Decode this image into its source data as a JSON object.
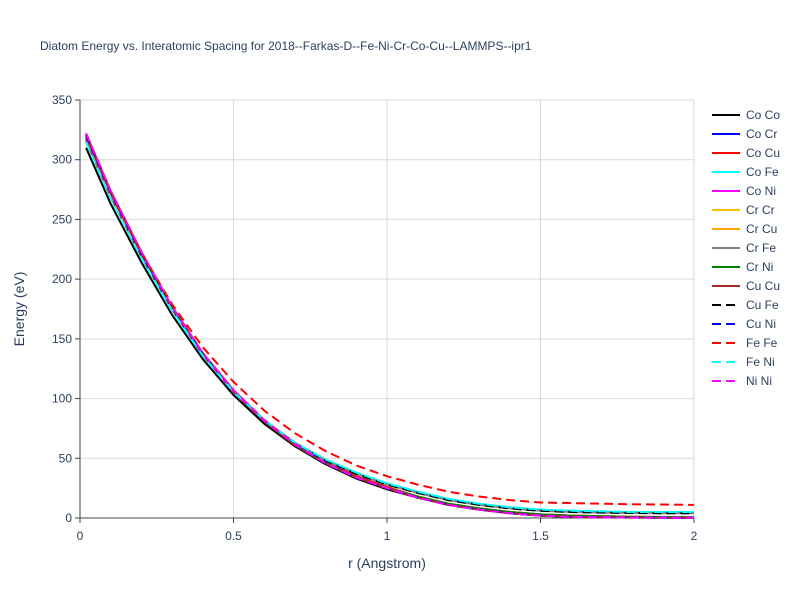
{
  "chart_data": {
    "type": "line",
    "title": "Diatom Energy vs. Interatomic Spacing for 2018--Farkas-D--Fe-Ni-Cr-Co-Cu--LAMMPS--ipr1",
    "xlabel": "r (Angstrom)",
    "ylabel": "Energy (eV)",
    "xlim": [
      0,
      2
    ],
    "ylim": [
      0,
      350
    ],
    "x_ticks": [
      "0",
      "0.5",
      "1",
      "1.5",
      "2"
    ],
    "y_ticks": [
      "0",
      "50",
      "100",
      "150",
      "200",
      "250",
      "300",
      "350"
    ],
    "x_tick_values": [
      0,
      0.5,
      1,
      1.5,
      2
    ],
    "y_tick_values": [
      0,
      50,
      100,
      150,
      200,
      250,
      300,
      350
    ],
    "grid": true,
    "legend_position": "right",
    "x": [
      0.02,
      0.1,
      0.2,
      0.3,
      0.4,
      0.5,
      0.6,
      0.7,
      0.8,
      0.9,
      1.0,
      1.1,
      1.2,
      1.3,
      1.4,
      1.5,
      1.6,
      1.7,
      1.8,
      1.9,
      2.0
    ],
    "series": [
      {
        "name": "Co Co",
        "color": "#000000",
        "dash": "solid",
        "values": [
          310,
          263,
          214,
          170,
          133,
          103,
          79,
          60,
          45,
          33,
          24,
          17,
          11,
          7,
          4,
          2,
          1,
          0.5,
          0.3,
          0.2,
          0.1
        ]
      },
      {
        "name": "Co Cr",
        "color": "#0000ff",
        "dash": "solid",
        "values": [
          318,
          270,
          220,
          175,
          137,
          106,
          81,
          61,
          46,
          34,
          25,
          18,
          12,
          8,
          5,
          3,
          2,
          1.5,
          1,
          0.8,
          0.6
        ]
      },
      {
        "name": "Co Cu",
        "color": "#ff0000",
        "dash": "solid",
        "values": [
          321,
          273,
          222,
          177,
          138,
          107,
          82,
          62,
          47,
          35,
          26,
          18,
          12,
          8,
          5,
          3,
          2,
          1.5,
          1,
          0.8,
          0.6
        ]
      },
      {
        "name": "Co Fe",
        "color": "#00ffff",
        "dash": "solid",
        "values": [
          315,
          268,
          218,
          174,
          136,
          106,
          82,
          63,
          49,
          38,
          29,
          22,
          16,
          12,
          9,
          7,
          6,
          5.5,
          5,
          5,
          5
        ]
      },
      {
        "name": "Co Ni",
        "color": "#ff00ff",
        "dash": "solid",
        "values": [
          322,
          274,
          223,
          177,
          138,
          107,
          82,
          62,
          46,
          34,
          25,
          17,
          11,
          7,
          4,
          2,
          1,
          0.6,
          0.4,
          0.3,
          0.2
        ]
      },
      {
        "name": "Cr Cr",
        "color": "#ffbf00",
        "dash": "solid",
        "values": [
          320,
          272,
          221,
          176,
          137,
          106,
          81,
          61,
          46,
          34,
          25,
          18,
          12,
          8,
          5,
          3,
          2,
          1.5,
          1,
          0.8,
          0.6
        ]
      },
      {
        "name": "Cr Cu",
        "color": "#ffa500",
        "dash": "solid",
        "values": [
          320,
          272,
          221,
          176,
          137,
          106,
          81,
          61,
          46,
          34,
          25,
          18,
          12,
          8,
          5,
          3,
          2,
          1.5,
          1,
          0.8,
          0.6
        ]
      },
      {
        "name": "Cr Fe",
        "color": "#808080",
        "dash": "solid",
        "values": [
          316,
          269,
          219,
          175,
          137,
          106,
          82,
          63,
          48,
          37,
          28,
          21,
          15,
          11,
          8,
          6,
          5,
          4.5,
          4.2,
          4,
          4
        ]
      },
      {
        "name": "Cr Ni",
        "color": "#008000",
        "dash": "solid",
        "values": [
          319,
          271,
          220,
          175,
          137,
          106,
          81,
          61,
          46,
          34,
          25,
          18,
          12,
          8,
          5,
          3,
          2,
          1.5,
          1,
          0.8,
          0.6
        ]
      },
      {
        "name": "Cu Cu",
        "color": "#a52a2a",
        "dash": "solid",
        "values": [
          320,
          272,
          221,
          176,
          137,
          106,
          81,
          61,
          46,
          34,
          25,
          17,
          11,
          7,
          4,
          2,
          1,
          0.6,
          0.4,
          0.3,
          0.2
        ]
      },
      {
        "name": "Cu Fe",
        "color": "#000000",
        "dash": "dash",
        "values": [
          316,
          269,
          219,
          175,
          137,
          106,
          82,
          63,
          48,
          37,
          28,
          21,
          15,
          11,
          8,
          6,
          5,
          4.5,
          4.2,
          4,
          4
        ]
      },
      {
        "name": "Cu Ni",
        "color": "#0000ff",
        "dash": "dash",
        "values": [
          321,
          273,
          222,
          177,
          138,
          107,
          82,
          62,
          46,
          34,
          25,
          17,
          11,
          7,
          4,
          2,
          1,
          0.6,
          0.4,
          0.3,
          0.2
        ]
      },
      {
        "name": "Fe Fe",
        "color": "#ff0000",
        "dash": "dash",
        "values": [
          316,
          270,
          222,
          179,
          143,
          114,
          90,
          71,
          56,
          44,
          35,
          28,
          22,
          18,
          15,
          13,
          12.5,
          12,
          11.5,
          11.3,
          11
        ]
      },
      {
        "name": "Fe Ni",
        "color": "#00ffff",
        "dash": "dash",
        "values": [
          315,
          268,
          218,
          174,
          136,
          106,
          82,
          63,
          49,
          38,
          29,
          22,
          16,
          12,
          9,
          7,
          6,
          5.5,
          5,
          5,
          5
        ]
      },
      {
        "name": "Ni Ni",
        "color": "#ff00ff",
        "dash": "dash",
        "values": [
          322,
          274,
          223,
          177,
          138,
          107,
          82,
          62,
          46,
          34,
          25,
          17,
          11,
          7,
          4,
          2,
          1,
          0.6,
          0.4,
          0.3,
          0.2
        ]
      }
    ]
  }
}
